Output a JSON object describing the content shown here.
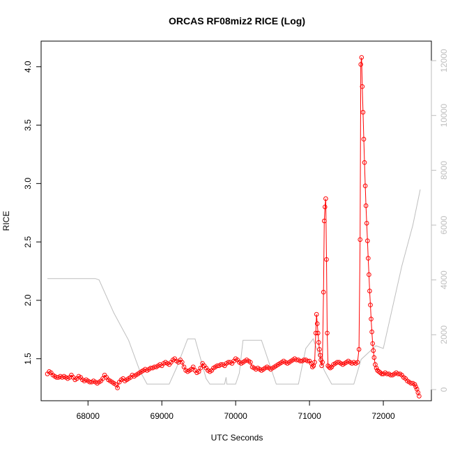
{
  "chart_data": {
    "type": "line",
    "title": "ORCAS RF08miz2 RICE (Log)",
    "xlabel": "UTC Seconds",
    "ylabel": "RICE",
    "y2label": "",
    "xlim": [
      67500,
      72500
    ],
    "ylim": [
      1.2,
      4.1
    ],
    "y2lim": [
      0,
      12200
    ],
    "x_ticks": [
      68000,
      69000,
      70000,
      71000,
      72000
    ],
    "y_ticks": [
      1.5,
      2.0,
      2.5,
      3.0,
      3.5,
      4.0
    ],
    "y2_ticks": [
      0,
      2000,
      4000,
      6000,
      8000,
      10000,
      12000
    ],
    "colors": {
      "primary": "#ff0000",
      "secondary": "#bebebe",
      "axis": "#000000"
    },
    "series": [
      {
        "axis": "left",
        "marker": "open-circle",
        "points": [
          [
            67450,
            1.37
          ],
          [
            67475,
            1.39
          ],
          [
            67500,
            1.38
          ],
          [
            67525,
            1.36
          ],
          [
            67550,
            1.35
          ],
          [
            67575,
            1.34
          ],
          [
            67600,
            1.34
          ],
          [
            67625,
            1.35
          ],
          [
            67650,
            1.34
          ],
          [
            67675,
            1.35
          ],
          [
            67700,
            1.34
          ],
          [
            67725,
            1.33
          ],
          [
            67750,
            1.34
          ],
          [
            67775,
            1.36
          ],
          [
            67800,
            1.34
          ],
          [
            67825,
            1.32
          ],
          [
            67850,
            1.33
          ],
          [
            67875,
            1.35
          ],
          [
            67900,
            1.34
          ],
          [
            67925,
            1.32
          ],
          [
            67950,
            1.31
          ],
          [
            67975,
            1.32
          ],
          [
            68000,
            1.31
          ],
          [
            68025,
            1.3
          ],
          [
            68050,
            1.3
          ],
          [
            68075,
            1.31
          ],
          [
            68100,
            1.3
          ],
          [
            68125,
            1.29
          ],
          [
            68150,
            1.3
          ],
          [
            68175,
            1.31
          ],
          [
            68200,
            1.33
          ],
          [
            68225,
            1.36
          ],
          [
            68250,
            1.34
          ],
          [
            68275,
            1.32
          ],
          [
            68300,
            1.31
          ],
          [
            68325,
            1.3
          ],
          [
            68350,
            1.29
          ],
          [
            68375,
            1.28
          ],
          [
            68400,
            1.25
          ],
          [
            68425,
            1.3
          ],
          [
            68450,
            1.32
          ],
          [
            68475,
            1.33
          ],
          [
            68500,
            1.31
          ],
          [
            68525,
            1.32
          ],
          [
            68550,
            1.33
          ],
          [
            68575,
            1.34
          ],
          [
            68600,
            1.36
          ],
          [
            68625,
            1.35
          ],
          [
            68650,
            1.36
          ],
          [
            68675,
            1.37
          ],
          [
            68700,
            1.38
          ],
          [
            68725,
            1.39
          ],
          [
            68750,
            1.4
          ],
          [
            68775,
            1.41
          ],
          [
            68800,
            1.4
          ],
          [
            68825,
            1.41
          ],
          [
            68850,
            1.42
          ],
          [
            68875,
            1.42
          ],
          [
            68900,
            1.43
          ],
          [
            68925,
            1.43
          ],
          [
            68950,
            1.44
          ],
          [
            68975,
            1.45
          ],
          [
            69000,
            1.44
          ],
          [
            69025,
            1.46
          ],
          [
            69050,
            1.47
          ],
          [
            69075,
            1.46
          ],
          [
            69100,
            1.45
          ],
          [
            69125,
            1.47
          ],
          [
            69150,
            1.49
          ],
          [
            69175,
            1.5
          ],
          [
            69200,
            1.48
          ],
          [
            69225,
            1.47
          ],
          [
            69250,
            1.49
          ],
          [
            69275,
            1.47
          ],
          [
            69300,
            1.43
          ],
          [
            69325,
            1.4
          ],
          [
            69350,
            1.39
          ],
          [
            69375,
            1.4
          ],
          [
            69400,
            1.41
          ],
          [
            69425,
            1.43
          ],
          [
            69450,
            1.4
          ],
          [
            69475,
            1.38
          ],
          [
            69500,
            1.39
          ],
          [
            69525,
            1.42
          ],
          [
            69550,
            1.46
          ],
          [
            69575,
            1.44
          ],
          [
            69600,
            1.42
          ],
          [
            69625,
            1.4
          ],
          [
            69650,
            1.39
          ],
          [
            69675,
            1.4
          ],
          [
            69700,
            1.42
          ],
          [
            69725,
            1.43
          ],
          [
            69750,
            1.44
          ],
          [
            69775,
            1.44
          ],
          [
            69800,
            1.45
          ],
          [
            69825,
            1.45
          ],
          [
            69850,
            1.44
          ],
          [
            69875,
            1.46
          ],
          [
            69900,
            1.47
          ],
          [
            69925,
            1.47
          ],
          [
            69950,
            1.46
          ],
          [
            69975,
            1.48
          ],
          [
            70000,
            1.5
          ],
          [
            70025,
            1.49
          ],
          [
            70050,
            1.47
          ],
          [
            70075,
            1.46
          ],
          [
            70100,
            1.47
          ],
          [
            70125,
            1.48
          ],
          [
            70150,
            1.49
          ],
          [
            70175,
            1.48
          ],
          [
            70200,
            1.47
          ],
          [
            70225,
            1.43
          ],
          [
            70250,
            1.42
          ],
          [
            70275,
            1.41
          ],
          [
            70300,
            1.42
          ],
          [
            70325,
            1.41
          ],
          [
            70350,
            1.4
          ],
          [
            70375,
            1.41
          ],
          [
            70400,
            1.42
          ],
          [
            70425,
            1.43
          ],
          [
            70450,
            1.42
          ],
          [
            70475,
            1.41
          ],
          [
            70500,
            1.42
          ],
          [
            70525,
            1.43
          ],
          [
            70550,
            1.44
          ],
          [
            70575,
            1.45
          ],
          [
            70600,
            1.46
          ],
          [
            70625,
            1.47
          ],
          [
            70650,
            1.48
          ],
          [
            70675,
            1.47
          ],
          [
            70700,
            1.46
          ],
          [
            70725,
            1.47
          ],
          [
            70750,
            1.48
          ],
          [
            70775,
            1.49
          ],
          [
            70800,
            1.5
          ],
          [
            70825,
            1.49
          ],
          [
            70850,
            1.49
          ],
          [
            70875,
            1.48
          ],
          [
            70900,
            1.48
          ],
          [
            70925,
            1.49
          ],
          [
            70950,
            1.49
          ],
          [
            70975,
            1.48
          ],
          [
            71000,
            1.48
          ],
          [
            71025,
            1.46
          ],
          [
            71040,
            1.43
          ],
          [
            71055,
            1.44
          ],
          [
            71070,
            1.47
          ],
          [
            71085,
            1.72
          ],
          [
            71095,
            1.88
          ],
          [
            71105,
            1.8
          ],
          [
            71115,
            1.72
          ],
          [
            71125,
            1.64
          ],
          [
            71135,
            1.58
          ],
          [
            71145,
            1.53
          ],
          [
            71155,
            1.49
          ],
          [
            71165,
            1.44
          ],
          [
            71175,
            1.47
          ],
          [
            71190,
            2.07
          ],
          [
            71200,
            2.68
          ],
          [
            71210,
            2.8
          ],
          [
            71220,
            2.87
          ],
          [
            71230,
            2.35
          ],
          [
            71240,
            1.72
          ],
          [
            71250,
            1.44
          ],
          [
            71265,
            1.43
          ],
          [
            71280,
            1.42
          ],
          [
            71300,
            1.43
          ],
          [
            71325,
            1.45
          ],
          [
            71350,
            1.46
          ],
          [
            71375,
            1.47
          ],
          [
            71400,
            1.47
          ],
          [
            71425,
            1.46
          ],
          [
            71450,
            1.45
          ],
          [
            71475,
            1.46
          ],
          [
            71500,
            1.47
          ],
          [
            71525,
            1.48
          ],
          [
            71550,
            1.47
          ],
          [
            71575,
            1.46
          ],
          [
            71600,
            1.47
          ],
          [
            71625,
            1.46
          ],
          [
            71650,
            1.47
          ],
          [
            71670,
            1.58
          ],
          [
            71685,
            2.52
          ],
          [
            71695,
            4.02
          ],
          [
            71705,
            4.08
          ],
          [
            71715,
            3.83
          ],
          [
            71725,
            3.61
          ],
          [
            71735,
            3.38
          ],
          [
            71745,
            3.18
          ],
          [
            71755,
            2.98
          ],
          [
            71765,
            2.81
          ],
          [
            71775,
            2.66
          ],
          [
            71785,
            2.51
          ],
          [
            71795,
            2.36
          ],
          [
            71805,
            2.22
          ],
          [
            71815,
            2.08
          ],
          [
            71825,
            1.96
          ],
          [
            71835,
            1.84
          ],
          [
            71845,
            1.73
          ],
          [
            71855,
            1.63
          ],
          [
            71865,
            1.57
          ],
          [
            71875,
            1.51
          ],
          [
            71890,
            1.45
          ],
          [
            71905,
            1.42
          ],
          [
            71920,
            1.4
          ],
          [
            71940,
            1.39
          ],
          [
            71960,
            1.38
          ],
          [
            71980,
            1.37
          ],
          [
            72000,
            1.37
          ],
          [
            72025,
            1.38
          ],
          [
            72050,
            1.37
          ],
          [
            72075,
            1.37
          ],
          [
            72100,
            1.36
          ],
          [
            72125,
            1.36
          ],
          [
            72150,
            1.37
          ],
          [
            72175,
            1.38
          ],
          [
            72200,
            1.37
          ],
          [
            72225,
            1.37
          ],
          [
            72250,
            1.36
          ],
          [
            72275,
            1.34
          ],
          [
            72300,
            1.33
          ],
          [
            72325,
            1.31
          ],
          [
            72350,
            1.3
          ],
          [
            72375,
            1.29
          ],
          [
            72400,
            1.29
          ],
          [
            72425,
            1.28
          ],
          [
            72440,
            1.26
          ],
          [
            72455,
            1.24
          ],
          [
            72470,
            1.21
          ],
          [
            72485,
            1.18
          ]
        ]
      },
      {
        "axis": "right",
        "marker": "line",
        "points": [
          [
            67450,
            4050
          ],
          [
            68100,
            4050
          ],
          [
            68150,
            4000
          ],
          [
            68350,
            2800
          ],
          [
            68550,
            1800
          ],
          [
            68700,
            700
          ],
          [
            68800,
            200
          ],
          [
            69100,
            200
          ],
          [
            69200,
            800
          ],
          [
            69350,
            1850
          ],
          [
            69450,
            1850
          ],
          [
            69600,
            400
          ],
          [
            69650,
            200
          ],
          [
            69850,
            200
          ],
          [
            69870,
            450
          ],
          [
            69880,
            200
          ],
          [
            70000,
            200
          ],
          [
            70050,
            600
          ],
          [
            70100,
            1800
          ],
          [
            70350,
            1800
          ],
          [
            70550,
            200
          ],
          [
            70850,
            200
          ],
          [
            70950,
            1500
          ],
          [
            71050,
            1850
          ],
          [
            71200,
            700
          ],
          [
            71300,
            200
          ],
          [
            71600,
            200
          ],
          [
            71700,
            1100
          ],
          [
            71900,
            1600
          ],
          [
            72000,
            1500
          ],
          [
            72250,
            4500
          ],
          [
            72400,
            6000
          ],
          [
            72500,
            7300
          ]
        ]
      }
    ]
  }
}
